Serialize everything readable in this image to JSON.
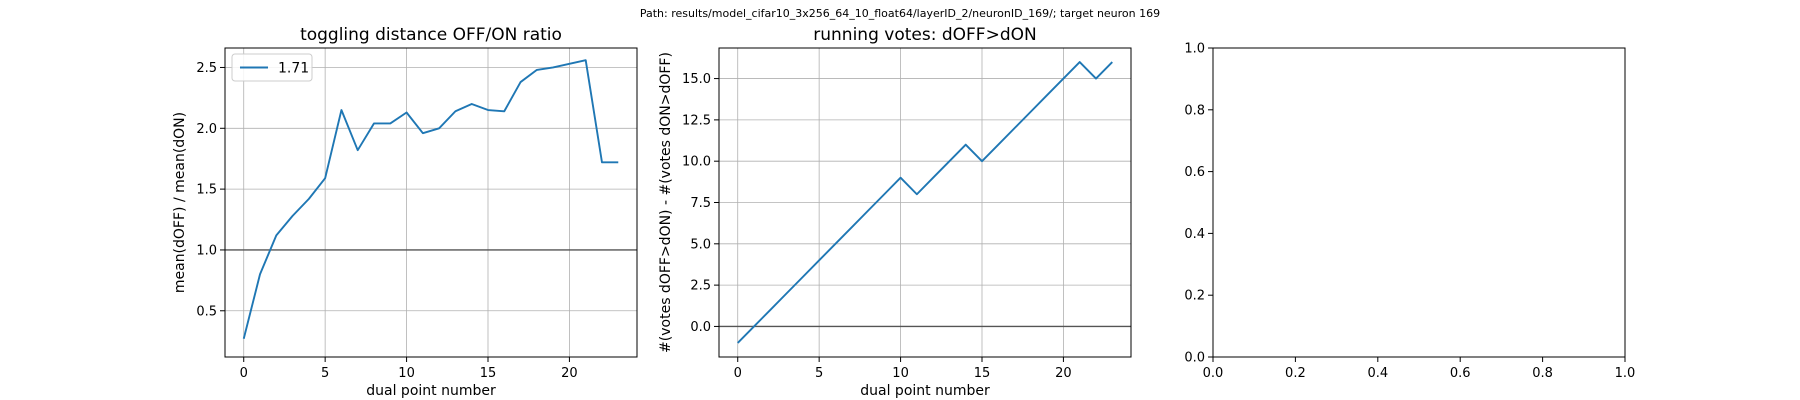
{
  "suptitle": "Path: results/model_cifar10_3x256_64_10_float64/layerID_2/neuronID_169/; target neuron 169",
  "colors": {
    "series": "#1f77b4",
    "hline": "#555555",
    "grid": "#b0b0b0"
  },
  "chart_data": [
    {
      "type": "line",
      "title": "toggling distance OFF/ON ratio",
      "xlabel": "dual point number",
      "ylabel": "mean(dOFF) / mean(dON)",
      "xlim": [
        -1.15,
        24.15
      ],
      "ylim": [
        0.12,
        2.66
      ],
      "xticks": [
        0,
        5,
        10,
        15,
        20
      ],
      "xtick_labels": [
        "0",
        "5",
        "10",
        "15",
        "20"
      ],
      "yticks": [
        0.5,
        1.0,
        1.5,
        2.0,
        2.5
      ],
      "ytick_labels": [
        "0.5",
        "1.0",
        "1.5",
        "2.0",
        "2.5"
      ],
      "grid": true,
      "hline": 1.0,
      "legend": {
        "position": "top-left",
        "entries": [
          "1.71"
        ]
      },
      "series": [
        {
          "name": "1.71",
          "x": [
            0,
            1,
            2,
            3,
            4,
            5,
            6,
            7,
            8,
            9,
            10,
            11,
            12,
            13,
            14,
            15,
            16,
            17,
            18,
            19,
            20,
            21,
            22,
            23
          ],
          "y": [
            0.27,
            0.8,
            1.12,
            1.28,
            1.42,
            1.59,
            2.15,
            1.82,
            2.04,
            2.04,
            2.13,
            1.96,
            2.0,
            2.14,
            2.2,
            2.15,
            2.14,
            2.38,
            2.48,
            2.5,
            2.53,
            2.56,
            1.72,
            1.72
          ]
        }
      ]
    },
    {
      "type": "line",
      "title": "running votes: dOFF>dON",
      "xlabel": "dual point number",
      "ylabel": "#(votes dOFF>dON) - #(votes dON>dOFF)",
      "xlim": [
        -1.15,
        24.15
      ],
      "ylim": [
        -1.85,
        16.85
      ],
      "xticks": [
        0,
        5,
        10,
        15,
        20
      ],
      "xtick_labels": [
        "0",
        "5",
        "10",
        "15",
        "20"
      ],
      "yticks": [
        0.0,
        2.5,
        5.0,
        7.5,
        10.0,
        12.5,
        15.0
      ],
      "ytick_labels": [
        "0.0",
        "2.5",
        "5.0",
        "7.5",
        "10.0",
        "12.5",
        "15.0"
      ],
      "grid": true,
      "hline": 0.0,
      "series": [
        {
          "name": "",
          "x": [
            0,
            1,
            2,
            3,
            4,
            5,
            6,
            7,
            8,
            9,
            10,
            11,
            12,
            13,
            14,
            15,
            16,
            17,
            18,
            19,
            20,
            21,
            22,
            23
          ],
          "y": [
            -1,
            0,
            1,
            2,
            3,
            4,
            5,
            6,
            7,
            8,
            9,
            8,
            9,
            10,
            11,
            10,
            11,
            12,
            13,
            14,
            15,
            16,
            15,
            16
          ]
        }
      ]
    },
    {
      "type": "line",
      "title": "",
      "xlabel": "",
      "ylabel": "",
      "xlim": [
        0,
        1
      ],
      "ylim": [
        0,
        1
      ],
      "xticks": [
        0,
        0.2,
        0.4,
        0.6,
        0.8,
        1.0
      ],
      "xtick_labels": [
        "0.0",
        "0.2",
        "0.4",
        "0.6",
        "0.8",
        "1.0"
      ],
      "yticks": [
        0,
        0.2,
        0.4,
        0.6,
        0.8,
        1.0
      ],
      "ytick_labels": [
        "0.0",
        "0.2",
        "0.4",
        "0.6",
        "0.8",
        "1.0"
      ],
      "grid": false,
      "series": []
    }
  ]
}
